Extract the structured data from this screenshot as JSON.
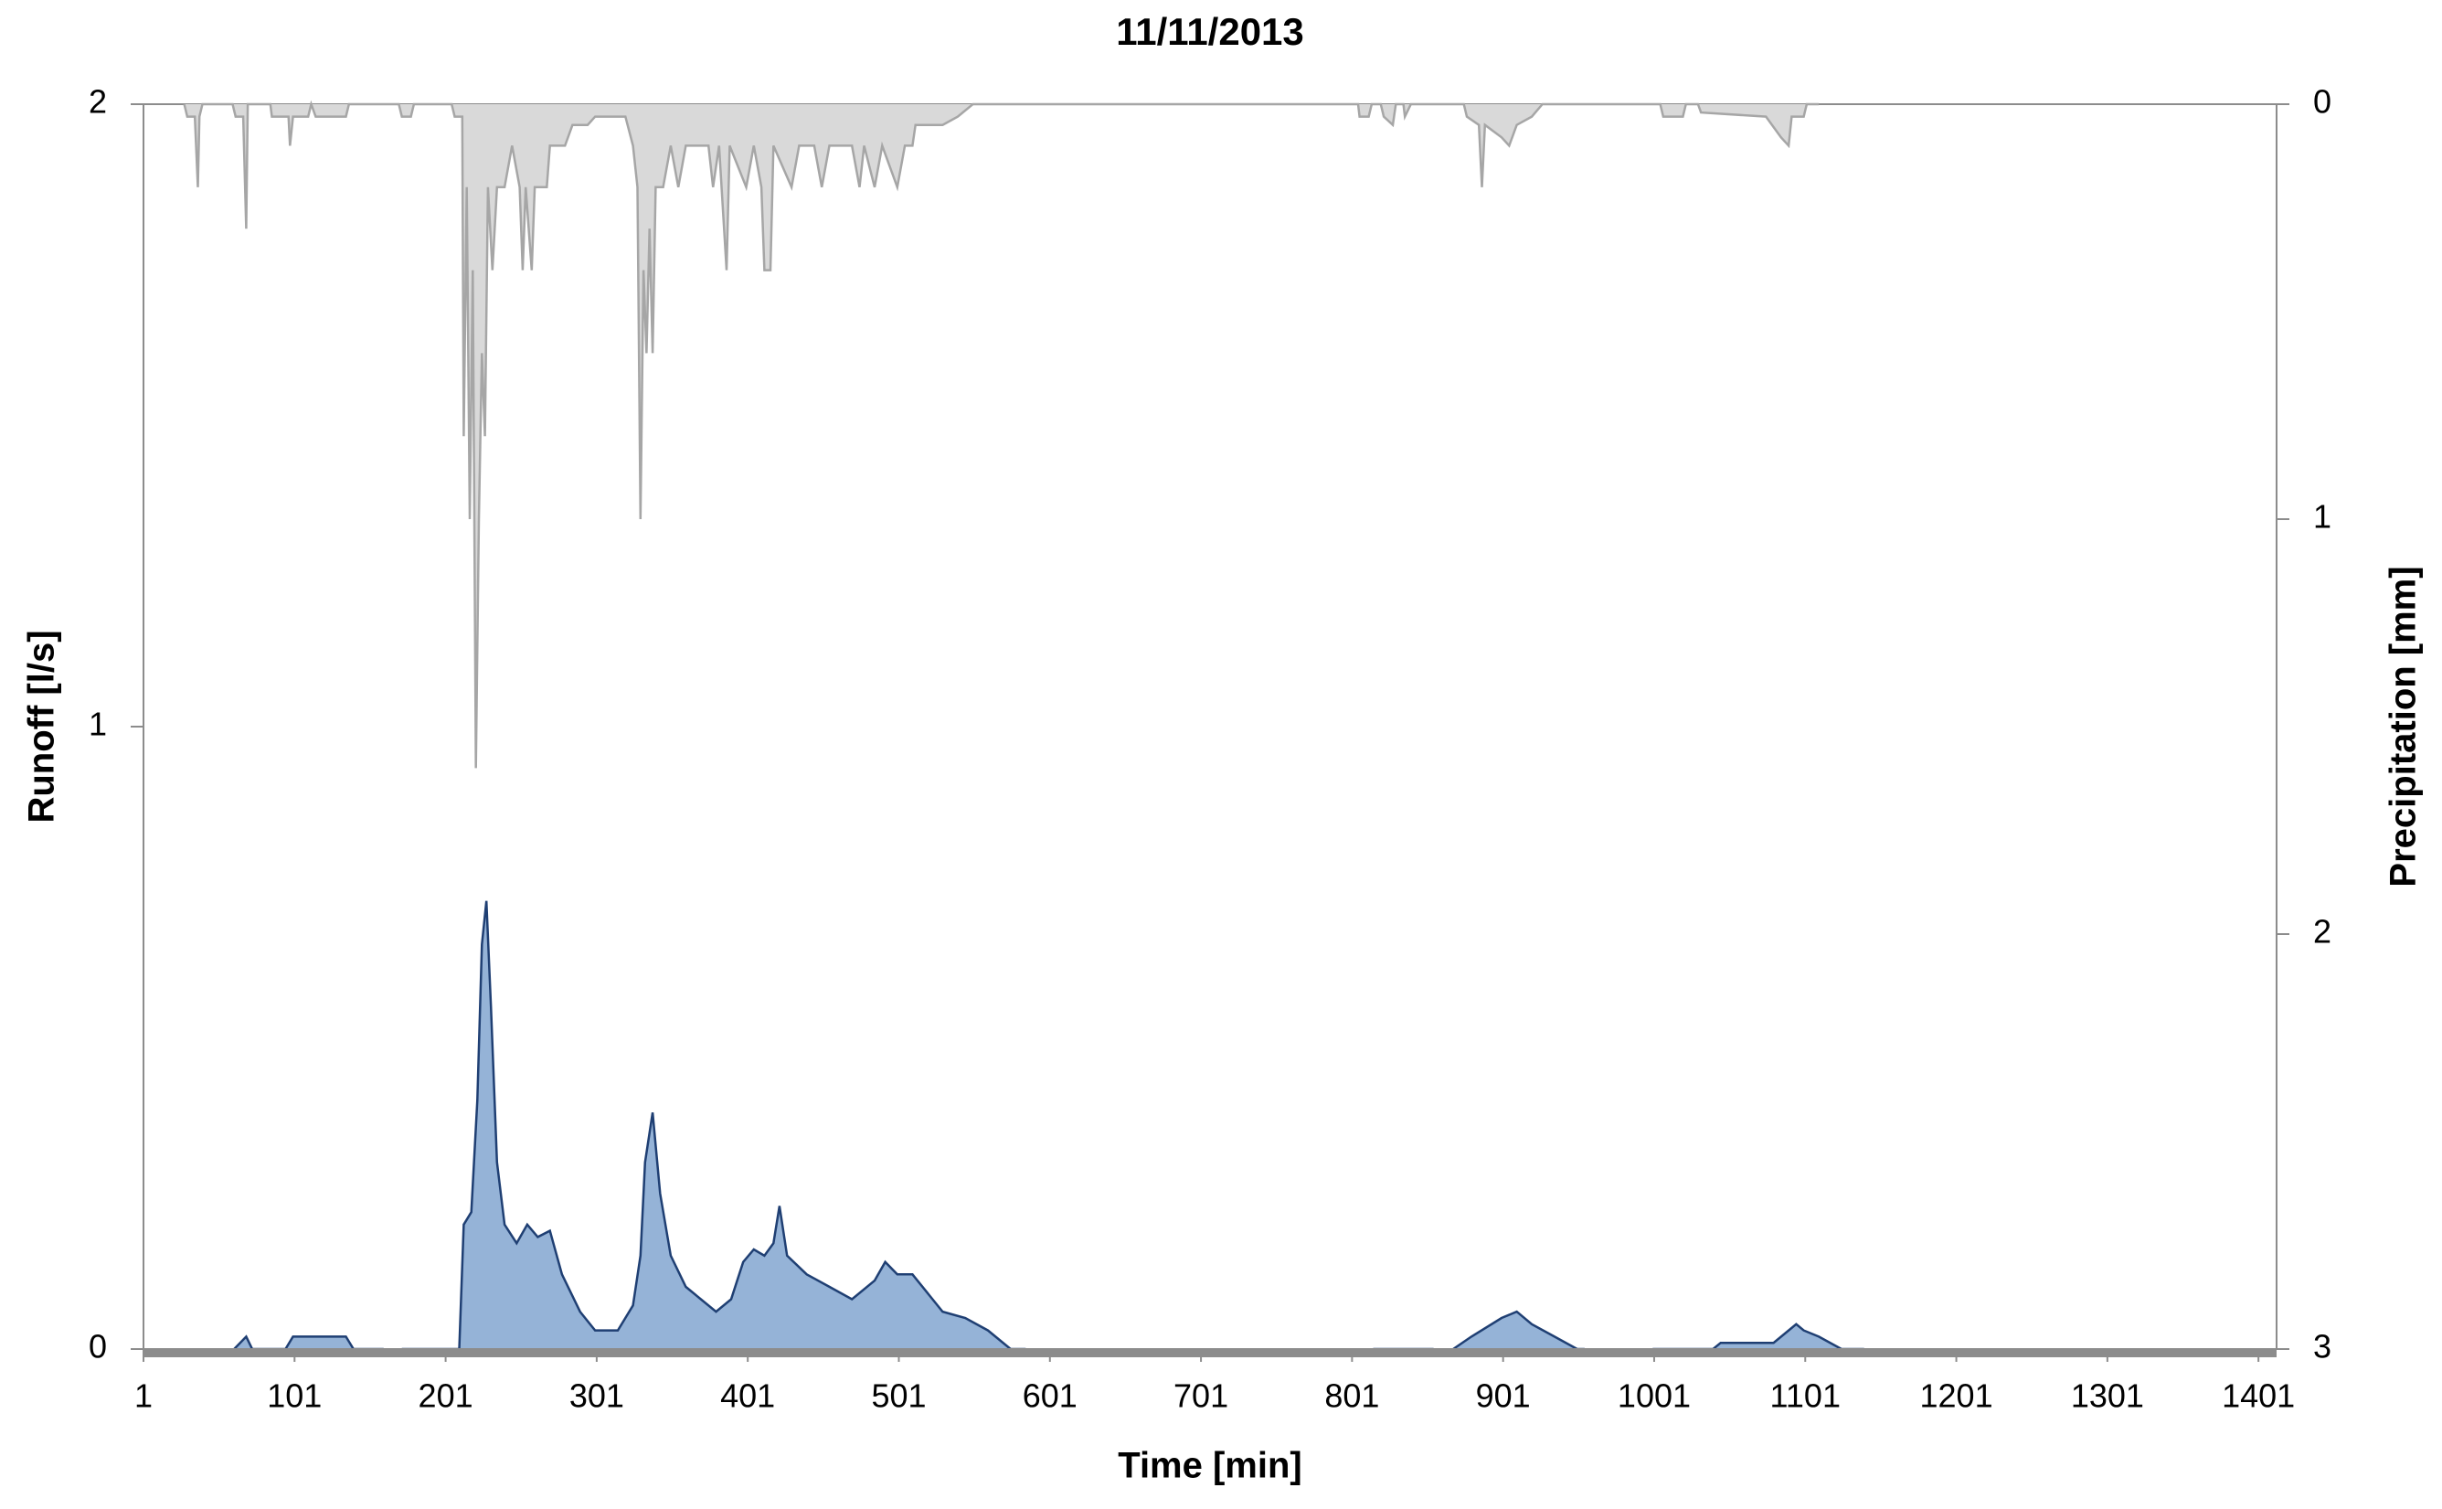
{
  "chart_data": {
    "type": "area",
    "title": "11/11/2013",
    "xlabel": "Time [min]",
    "ylabel": "Runoff [l/s]",
    "y2label": "Precipitation [mm]",
    "xlim": [
      1,
      1413
    ],
    "xticks": [
      1,
      101,
      201,
      301,
      401,
      501,
      601,
      701,
      801,
      901,
      1001,
      1101,
      1201,
      1301,
      1401
    ],
    "ylim": [
      0,
      2
    ],
    "yticks": [
      0,
      1,
      2
    ],
    "y2lim": [
      3,
      0
    ],
    "y2ticks": [
      0,
      1,
      2,
      3
    ],
    "series": [
      {
        "color": "#95b3d7",
        "line_color": "#1f3f73",
        "axis": "y",
        "x": [
          61,
          69,
          73,
          95,
          100,
          135,
          140,
          160,
          165,
          172,
          210,
          213,
          218,
          222,
          225,
          228,
          231,
          235,
          240,
          248,
          255,
          262,
          270,
          278,
          290,
          300,
          315,
          325,
          330,
          333,
          338,
          343,
          350,
          360,
          370,
          380,
          390,
          398,
          405,
          412,
          418,
          422,
          427,
          440,
          455,
          470,
          485,
          492,
          500,
          510,
          520,
          530,
          545,
          560,
          575,
          585,
          700,
          815,
          855,
          860,
          868,
          880,
          900,
          910,
          920,
          935,
          950,
          955,
          980,
          1000,
          1040,
          1045,
          1080,
          1090,
          1095,
          1100,
          1110,
          1125,
          1140
        ],
        "values": [
          0,
          0.02,
          0,
          0,
          0.02,
          0.02,
          0,
          0,
          null,
          0,
          0,
          0.2,
          0.22,
          0.4,
          0.65,
          0.72,
          0.55,
          0.3,
          0.2,
          0.17,
          0.2,
          0.18,
          0.19,
          0.12,
          0.06,
          0.03,
          0.03,
          0.07,
          0.15,
          0.3,
          0.38,
          0.25,
          0.15,
          0.1,
          0.08,
          0.06,
          0.08,
          0.14,
          0.16,
          0.15,
          0.17,
          0.23,
          0.15,
          0.12,
          0.1,
          0.08,
          0.11,
          0.14,
          0.12,
          0.12,
          0.09,
          0.06,
          0.05,
          0.03,
          0,
          0,
          null,
          0,
          0,
          null,
          0,
          0.02,
          0.05,
          0.06,
          0.04,
          0.02,
          0,
          0,
          null,
          0,
          0,
          0.01,
          0.01,
          0.03,
          0.04,
          0.03,
          0.02,
          0,
          0
        ]
      },
      {
        "color": "#d9d9d9",
        "line_color": "#a6a6a6",
        "axis": "y2",
        "x": [
          28,
          30,
          35,
          37,
          38,
          40,
          60,
          62,
          67,
          69,
          70,
          85,
          86,
          97,
          98,
          100,
          110,
          112,
          115,
          135,
          137,
          170,
          172,
          178,
          180,
          205,
          207,
          212,
          213,
          215,
          217,
          219,
          221,
          223,
          225,
          227,
          229,
          232,
          235,
          240,
          245,
          250,
          252,
          254,
          258,
          260,
          268,
          270,
          280,
          285,
          295,
          300,
          320,
          325,
          328,
          330,
          332,
          334,
          336,
          338,
          340,
          345,
          350,
          355,
          360,
          370,
          375,
          378,
          382,
          387,
          389,
          400,
          405,
          410,
          412,
          416,
          418,
          430,
          435,
          445,
          450,
          455,
          470,
          475,
          478,
          485,
          490,
          500,
          505,
          510,
          512,
          530,
          540,
          550,
          805,
          806,
          812,
          814,
          820,
          822,
          828,
          830,
          835,
          836,
          840,
          875,
          877,
          885,
          887,
          889,
          900,
          905,
          910,
          920,
          927,
          1005,
          1007,
          1020,
          1022,
          1030,
          1032,
          1075,
          1085,
          1090,
          1092,
          1100,
          1102,
          1110
        ],
        "values": [
          0,
          0.03,
          0.03,
          0.2,
          0.03,
          0,
          0,
          0.03,
          0.03,
          0.3,
          0,
          0,
          0.03,
          0.03,
          0.1,
          0.03,
          0.03,
          0,
          0.03,
          0.03,
          0,
          0,
          0.03,
          0.03,
          0,
          0,
          0.03,
          0.03,
          0.8,
          0.2,
          1.0,
          0.4,
          1.6,
          1.0,
          0.6,
          0.8,
          0.2,
          0.4,
          0.2,
          0.2,
          0.1,
          0.2,
          0.4,
          0.2,
          0.4,
          0.2,
          0.2,
          0.1,
          0.1,
          0.05,
          0.05,
          0.03,
          0.03,
          0.1,
          0.2,
          1.0,
          0.4,
          0.6,
          0.3,
          0.6,
          0.2,
          0.2,
          0.1,
          0.2,
          0.1,
          0.1,
          0.1,
          0.2,
          0.1,
          0.4,
          0.1,
          0.2,
          0.1,
          0.2,
          0.4,
          0.4,
          0.1,
          0.2,
          0.1,
          0.1,
          0.2,
          0.1,
          0.1,
          0.2,
          0.1,
          0.2,
          0.1,
          0.2,
          0.1,
          0.1,
          0.05,
          0.05,
          0.03,
          0,
          0,
          0.03,
          0.03,
          0,
          0,
          0.03,
          0.05,
          0,
          0,
          0.03,
          0,
          0,
          0.03,
          0.05,
          0.2,
          0.05,
          0.08,
          0.1,
          0.05,
          0.03,
          0,
          0,
          0.03,
          0.03,
          0,
          0,
          0.02,
          0.03,
          0.08,
          0.1,
          0.03,
          0.03,
          0,
          0
        ]
      }
    ]
  }
}
